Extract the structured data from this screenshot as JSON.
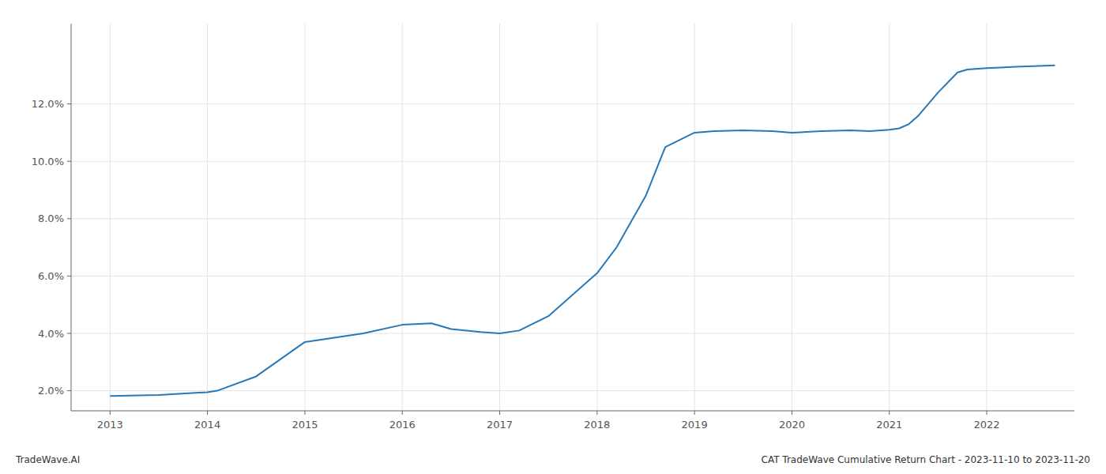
{
  "chart_data": {
    "type": "line",
    "x": [
      2013.0,
      2013.2,
      2013.5,
      2014.0,
      2014.1,
      2014.5,
      2015.0,
      2015.3,
      2015.6,
      2016.0,
      2016.3,
      2016.5,
      2016.8,
      2017.0,
      2017.2,
      2017.5,
      2017.8,
      2018.0,
      2018.2,
      2018.5,
      2018.7,
      2019.0,
      2019.2,
      2019.5,
      2019.8,
      2020.0,
      2020.3,
      2020.6,
      2020.8,
      2021.0,
      2021.1,
      2021.2,
      2021.3,
      2021.5,
      2021.7,
      2021.8,
      2022.0,
      2022.3,
      2022.7
    ],
    "values": [
      1.82,
      1.83,
      1.85,
      1.95,
      2.0,
      2.5,
      3.7,
      3.85,
      4.0,
      4.3,
      4.35,
      4.15,
      4.05,
      4.0,
      4.1,
      4.6,
      5.5,
      6.1,
      7.0,
      8.8,
      10.5,
      11.0,
      11.05,
      11.08,
      11.05,
      11.0,
      11.05,
      11.08,
      11.05,
      11.1,
      11.15,
      11.3,
      11.6,
      12.4,
      13.1,
      13.2,
      13.25,
      13.3,
      13.35
    ],
    "color": "#2878b8",
    "xlim": [
      2012.6,
      2022.9
    ],
    "xticks": [
      2013,
      2014,
      2015,
      2016,
      2017,
      2018,
      2019,
      2020,
      2021,
      2022
    ],
    "ylim": [
      1.3,
      14.8
    ],
    "yticks": [
      {
        "value": 2.0,
        "label": "2.0%"
      },
      {
        "value": 4.0,
        "label": "4.0%"
      },
      {
        "value": 6.0,
        "label": "6.0%"
      },
      {
        "value": 8.0,
        "label": "8.0%"
      },
      {
        "value": 10.0,
        "label": "10.0%"
      },
      {
        "value": 12.0,
        "label": "12.0%"
      }
    ],
    "grid": true,
    "annotations": [
      "TradeWave.AI",
      "CAT TradeWave Cumulative Return Chart - 2023-11-10 to 2023-11-20"
    ]
  }
}
